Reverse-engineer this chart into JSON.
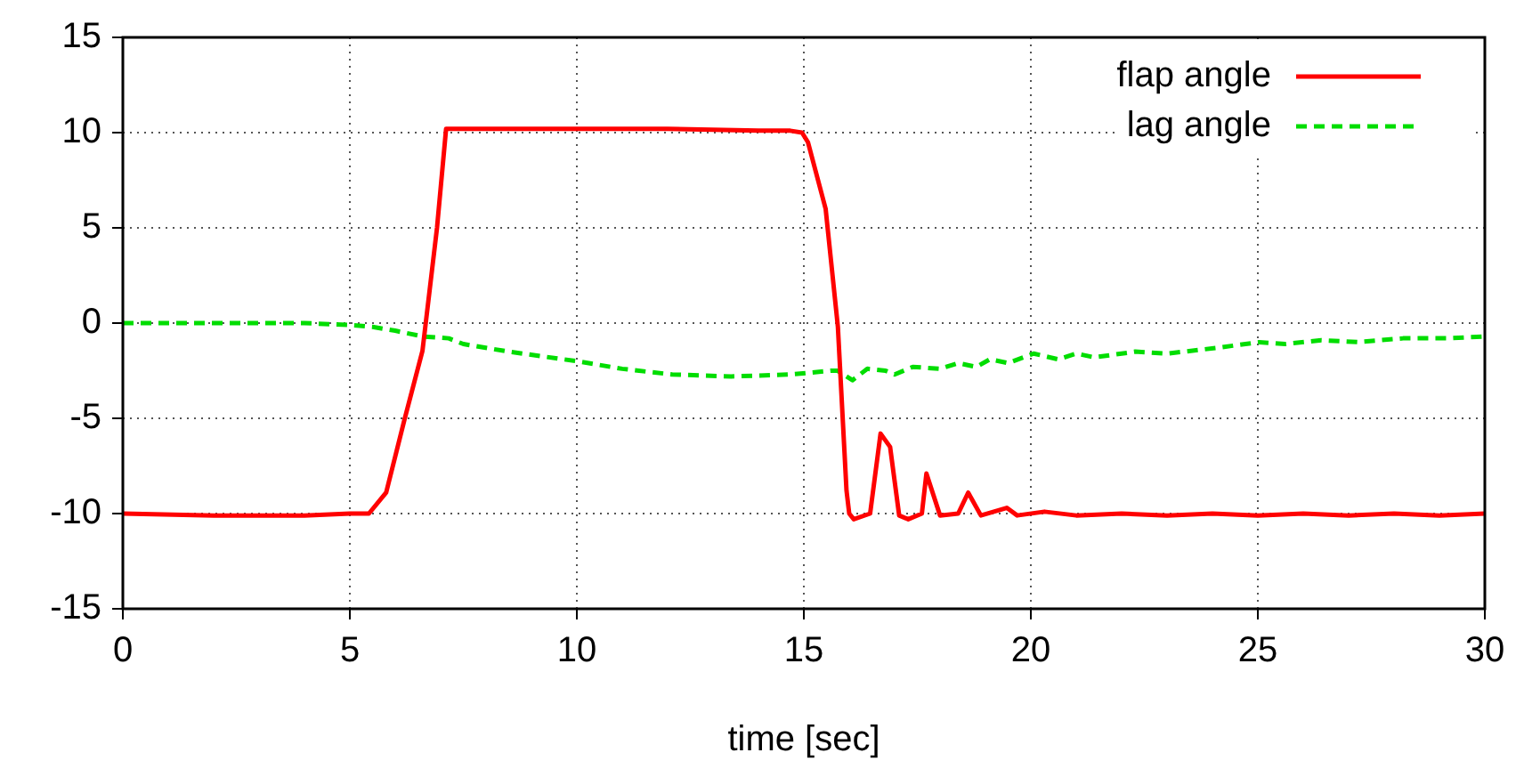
{
  "chart_data": {
    "type": "line",
    "xlabel": "time [sec]",
    "xlim": [
      0,
      30
    ],
    "xticks": [
      0,
      5,
      10,
      15,
      20,
      25,
      30
    ],
    "ylim": [
      -15,
      15
    ],
    "yticks": [
      -15,
      -10,
      -5,
      0,
      5,
      10,
      15
    ],
    "grid": true,
    "legend": "top right",
    "marker": "none",
    "series": [
      {
        "name": "flap angle",
        "color": "#ff0000",
        "line_style": "solid",
        "x": [
          0,
          2,
          4,
          5,
          5.42,
          5.8,
          6.2,
          6.6,
          6.92,
          7.12,
          8,
          10,
          12,
          14,
          14.7,
          14.96,
          15.09,
          15.48,
          15.75,
          15.94,
          16.0,
          16.1,
          16.46,
          16.69,
          16.9,
          17.1,
          17.3,
          17.6,
          17.7,
          18.0,
          18.4,
          18.62,
          18.9,
          19.47,
          19.7,
          20.3,
          21,
          22,
          23,
          24,
          25,
          26,
          27,
          28,
          29,
          30
        ],
        "values": [
          -10,
          -10.1,
          -10.1,
          -10.0,
          -10,
          -8.9,
          -5.1,
          -1.45,
          5.0,
          10.2,
          10.2,
          10.2,
          10.2,
          10.1,
          10.1,
          10.0,
          9.5,
          6.0,
          -0.2,
          -8.8,
          -10.0,
          -10.3,
          -10.0,
          -5.8,
          -6.5,
          -10.1,
          -10.3,
          -10.0,
          -7.9,
          -10.1,
          -10.0,
          -8.9,
          -10.1,
          -9.7,
          -10.1,
          -9.9,
          -10.1,
          -10.0,
          -10.1,
          -10.0,
          -10.1,
          -10.0,
          -10.1,
          -10.0,
          -10.1,
          -10.0
        ]
      },
      {
        "name": "lag angle",
        "color": "#00dd00",
        "line_style": "dashed",
        "x": [
          0,
          2,
          4,
          5,
          5.5,
          6.0,
          6.6,
          7.18,
          7.5,
          8.5,
          10.0,
          11.0,
          12.1,
          13.4,
          14.7,
          15.6,
          15.74,
          16.07,
          16.4,
          16.8,
          17.0,
          17.4,
          18.0,
          18.4,
          18.8,
          19.1,
          19.5,
          20.06,
          20.6,
          21.0,
          21.4,
          22.3,
          23.0,
          24.1,
          25.03,
          25.6,
          26.4,
          27.2,
          28.2,
          29.2,
          30.0
        ],
        "values": [
          0,
          0,
          0,
          -0.1,
          -0.2,
          -0.4,
          -0.7,
          -0.8,
          -1.1,
          -1.5,
          -2.0,
          -2.4,
          -2.7,
          -2.8,
          -2.7,
          -2.5,
          -2.5,
          -3.0,
          -2.4,
          -2.5,
          -2.7,
          -2.3,
          -2.4,
          -2.1,
          -2.3,
          -1.9,
          -2.1,
          -1.6,
          -1.9,
          -1.6,
          -1.8,
          -1.5,
          -1.6,
          -1.3,
          -1.0,
          -1.1,
          -0.9,
          -1.0,
          -0.8,
          -0.8,
          -0.7
        ]
      }
    ]
  }
}
